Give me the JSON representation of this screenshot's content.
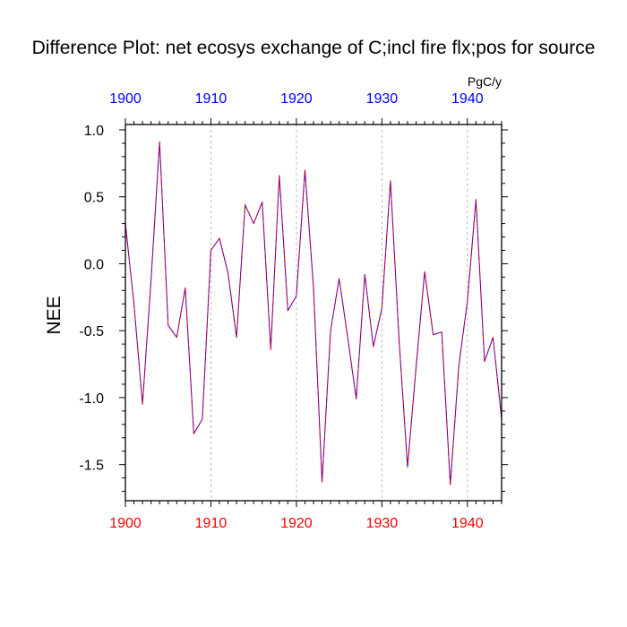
{
  "chart_data": {
    "type": "line",
    "title": "Difference Plot: net ecosys exchange of C;incl fire flx;pos for source",
    "units": "PgC/y",
    "ylabel": "NEE",
    "xlabel": "",
    "xlim": [
      1900,
      1944
    ],
    "ylim": [
      -1.77,
      1.04
    ],
    "x_ticks": [
      1900,
      1910,
      1920,
      1930,
      1940
    ],
    "x_tick_labels": [
      "1900",
      "1910",
      "1920",
      "1930",
      "1940"
    ],
    "y_ticks": [
      1.0,
      0.5,
      0.0,
      -0.5,
      -1.0,
      -1.5
    ],
    "y_tick_labels": [
      "1.0",
      "0.5",
      "0.0",
      "-0.5",
      "-1.0",
      "-1.5"
    ],
    "grid": "vertical dashed at major x ticks",
    "colors": {
      "top_axis_labels": "#0000ff",
      "bottom_axis_labels": "#ff0000",
      "series_a": "#0000ff",
      "series_b": "#ff0000",
      "grid": "#aaaaaa"
    },
    "x": [
      1900,
      1901,
      1902,
      1903,
      1904,
      1905,
      1906,
      1907,
      1908,
      1909,
      1910,
      1911,
      1912,
      1913,
      1914,
      1915,
      1916,
      1917,
      1918,
      1919,
      1920,
      1921,
      1922,
      1923,
      1924,
      1925,
      1926,
      1927,
      1928,
      1929,
      1930,
      1931,
      1932,
      1933,
      1934,
      1935,
      1936,
      1937,
      1938,
      1939,
      1940,
      1941,
      1942,
      1943,
      1944
    ],
    "series": [
      {
        "values": [
          0.3,
          -0.3,
          -1.05,
          -0.12,
          0.91,
          -0.46,
          -0.55,
          -0.18,
          -1.27,
          -1.16,
          0.1,
          0.19,
          -0.07,
          -0.55,
          0.44,
          0.3,
          0.46,
          -0.64,
          0.66,
          -0.35,
          -0.24,
          0.7,
          -0.18,
          -1.63,
          -0.5,
          -0.11,
          -0.55,
          -1.01,
          -0.08,
          -0.62,
          -0.33,
          0.62,
          -0.56,
          -1.52,
          -0.77,
          -0.06,
          -0.53,
          -0.51,
          -1.65,
          -0.76,
          -0.28,
          0.48,
          -0.73,
          -0.55,
          -1.16
        ]
      },
      {
        "values": [
          0.3,
          -0.3,
          -1.05,
          -0.12,
          0.91,
          -0.46,
          -0.55,
          -0.18,
          -1.27,
          -1.16,
          0.1,
          0.19,
          -0.07,
          -0.55,
          0.44,
          0.3,
          0.46,
          -0.64,
          0.66,
          -0.35,
          -0.24,
          0.7,
          -0.18,
          -1.63,
          -0.5,
          -0.11,
          -0.55,
          -1.01,
          -0.08,
          -0.62,
          -0.33,
          0.62,
          -0.56,
          -1.52,
          -0.77,
          -0.06,
          -0.53,
          -0.51,
          -1.65,
          -0.76,
          -0.28,
          0.48,
          -0.73,
          -0.55,
          -1.16
        ]
      }
    ]
  }
}
